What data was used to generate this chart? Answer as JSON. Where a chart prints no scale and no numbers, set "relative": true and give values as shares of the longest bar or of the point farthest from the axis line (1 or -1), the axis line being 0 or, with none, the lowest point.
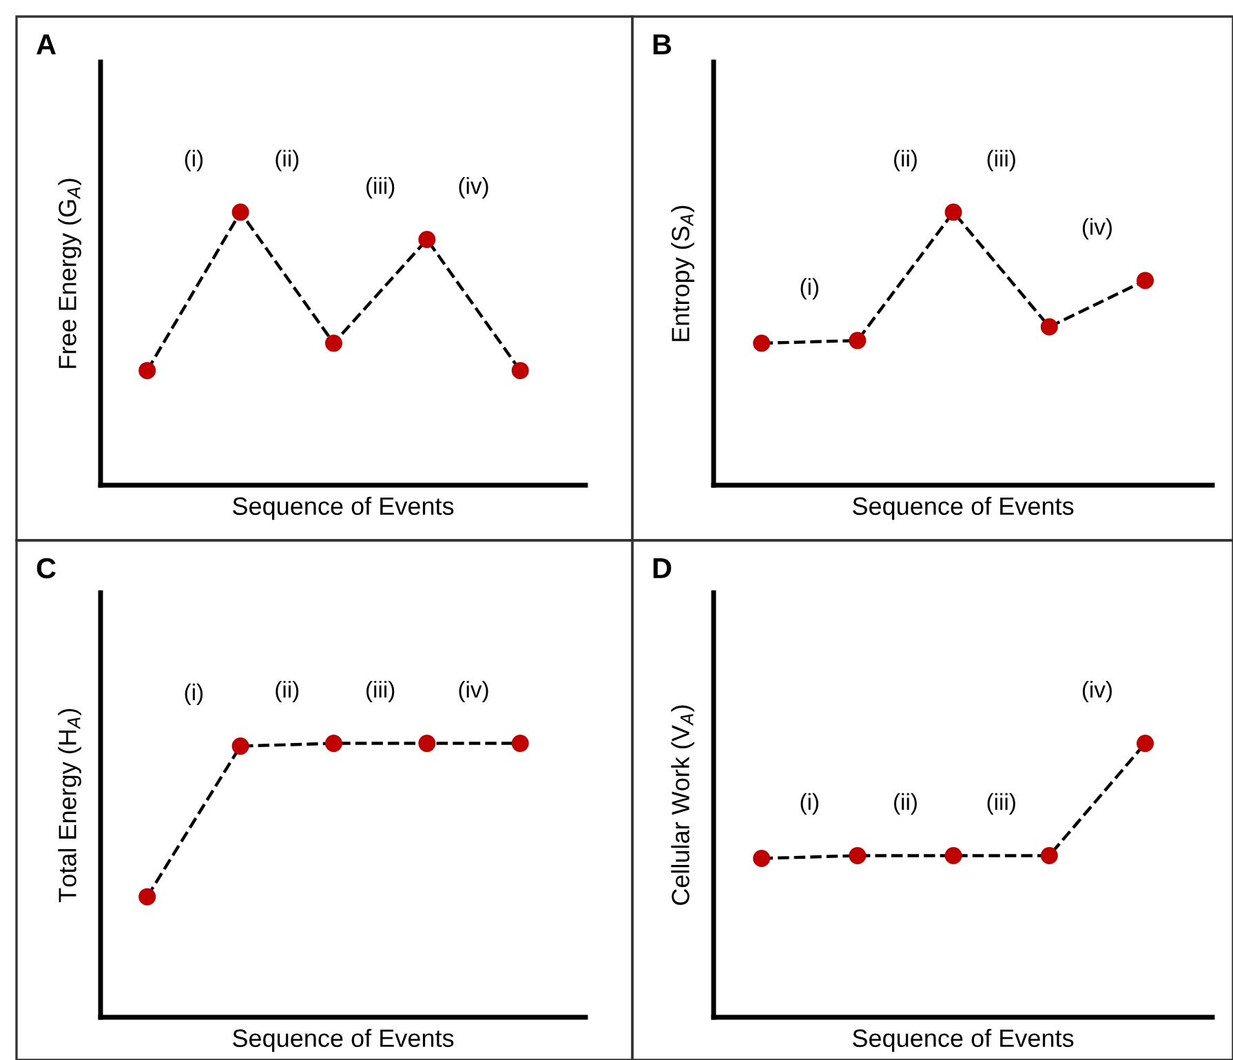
{
  "chart_data": [
    {
      "type": "line",
      "title": "A",
      "xlabel": "Sequence of Events",
      "ylabel": "Free Energy (G$_{A}$)",
      "relative": true,
      "categories": [
        null,
        null,
        null,
        null,
        null
      ],
      "marker": "circle",
      "line_style": "dashed",
      "series": [
        {
          "color": "#000000",
          "colors": [
            "#c00000",
            "#c00000",
            "#c00000",
            "#c00000",
            "#c00000"
          ],
          "values": [
            0.42,
            1,
            0.52,
            0.9,
            0.42
          ]
        }
      ],
      "annotations": [
        "(i)",
        "(ii)",
        "(iii)",
        "(iv)"
      ]
    },
    {
      "type": "line",
      "title": "B",
      "xlabel": "Sequence of Events",
      "ylabel": "Entropy (S$_{A}$)",
      "relative": true,
      "categories": [
        null,
        null,
        null,
        null,
        null
      ],
      "marker": "circle",
      "line_style": "dashed",
      "series": [
        {
          "color": "#000000",
          "colors": [
            "#c00000",
            "#c00000",
            "#c00000",
            "#c00000",
            "#c00000"
          ],
          "values": [
            0.52,
            0.53,
            1,
            0.58,
            0.75
          ]
        }
      ],
      "annotations": [
        "(i)",
        "(ii)",
        "(iii)",
        "(iv)"
      ]
    },
    {
      "type": "line",
      "title": "C",
      "xlabel": "Sequence of Events",
      "ylabel": "Total Energy (H$_{A}$)",
      "relative": true,
      "categories": [
        null,
        null,
        null,
        null,
        null
      ],
      "marker": "circle",
      "line_style": "dashed",
      "series": [
        {
          "color": "#000000",
          "colors": [
            "#c00000",
            "#c00000",
            "#c00000",
            "#c00000",
            "#c00000"
          ],
          "values": [
            0.44,
            0.99,
            1,
            1,
            1
          ]
        }
      ],
      "annotations": [
        "(i)",
        "(ii)",
        "(iii)",
        "(iv)"
      ]
    },
    {
      "type": "line",
      "title": "D",
      "xlabel": "Sequence of Events",
      "ylabel": "Cellular Work (V$_{A}$)",
      "relative": true,
      "categories": [
        null,
        null,
        null,
        null,
        null
      ],
      "marker": "circle",
      "line_style": "dashed",
      "series": [
        {
          "color": "#000000",
          "colors": [
            "#c00000",
            "#c00000",
            "#c00000",
            "#c00000",
            "#c00000"
          ],
          "values": [
            0.58,
            0.59,
            0.59,
            0.59,
            1
          ]
        }
      ],
      "annotations": [
        "(i)",
        "(ii)",
        "(iii)",
        "(iv)"
      ]
    }
  ]
}
